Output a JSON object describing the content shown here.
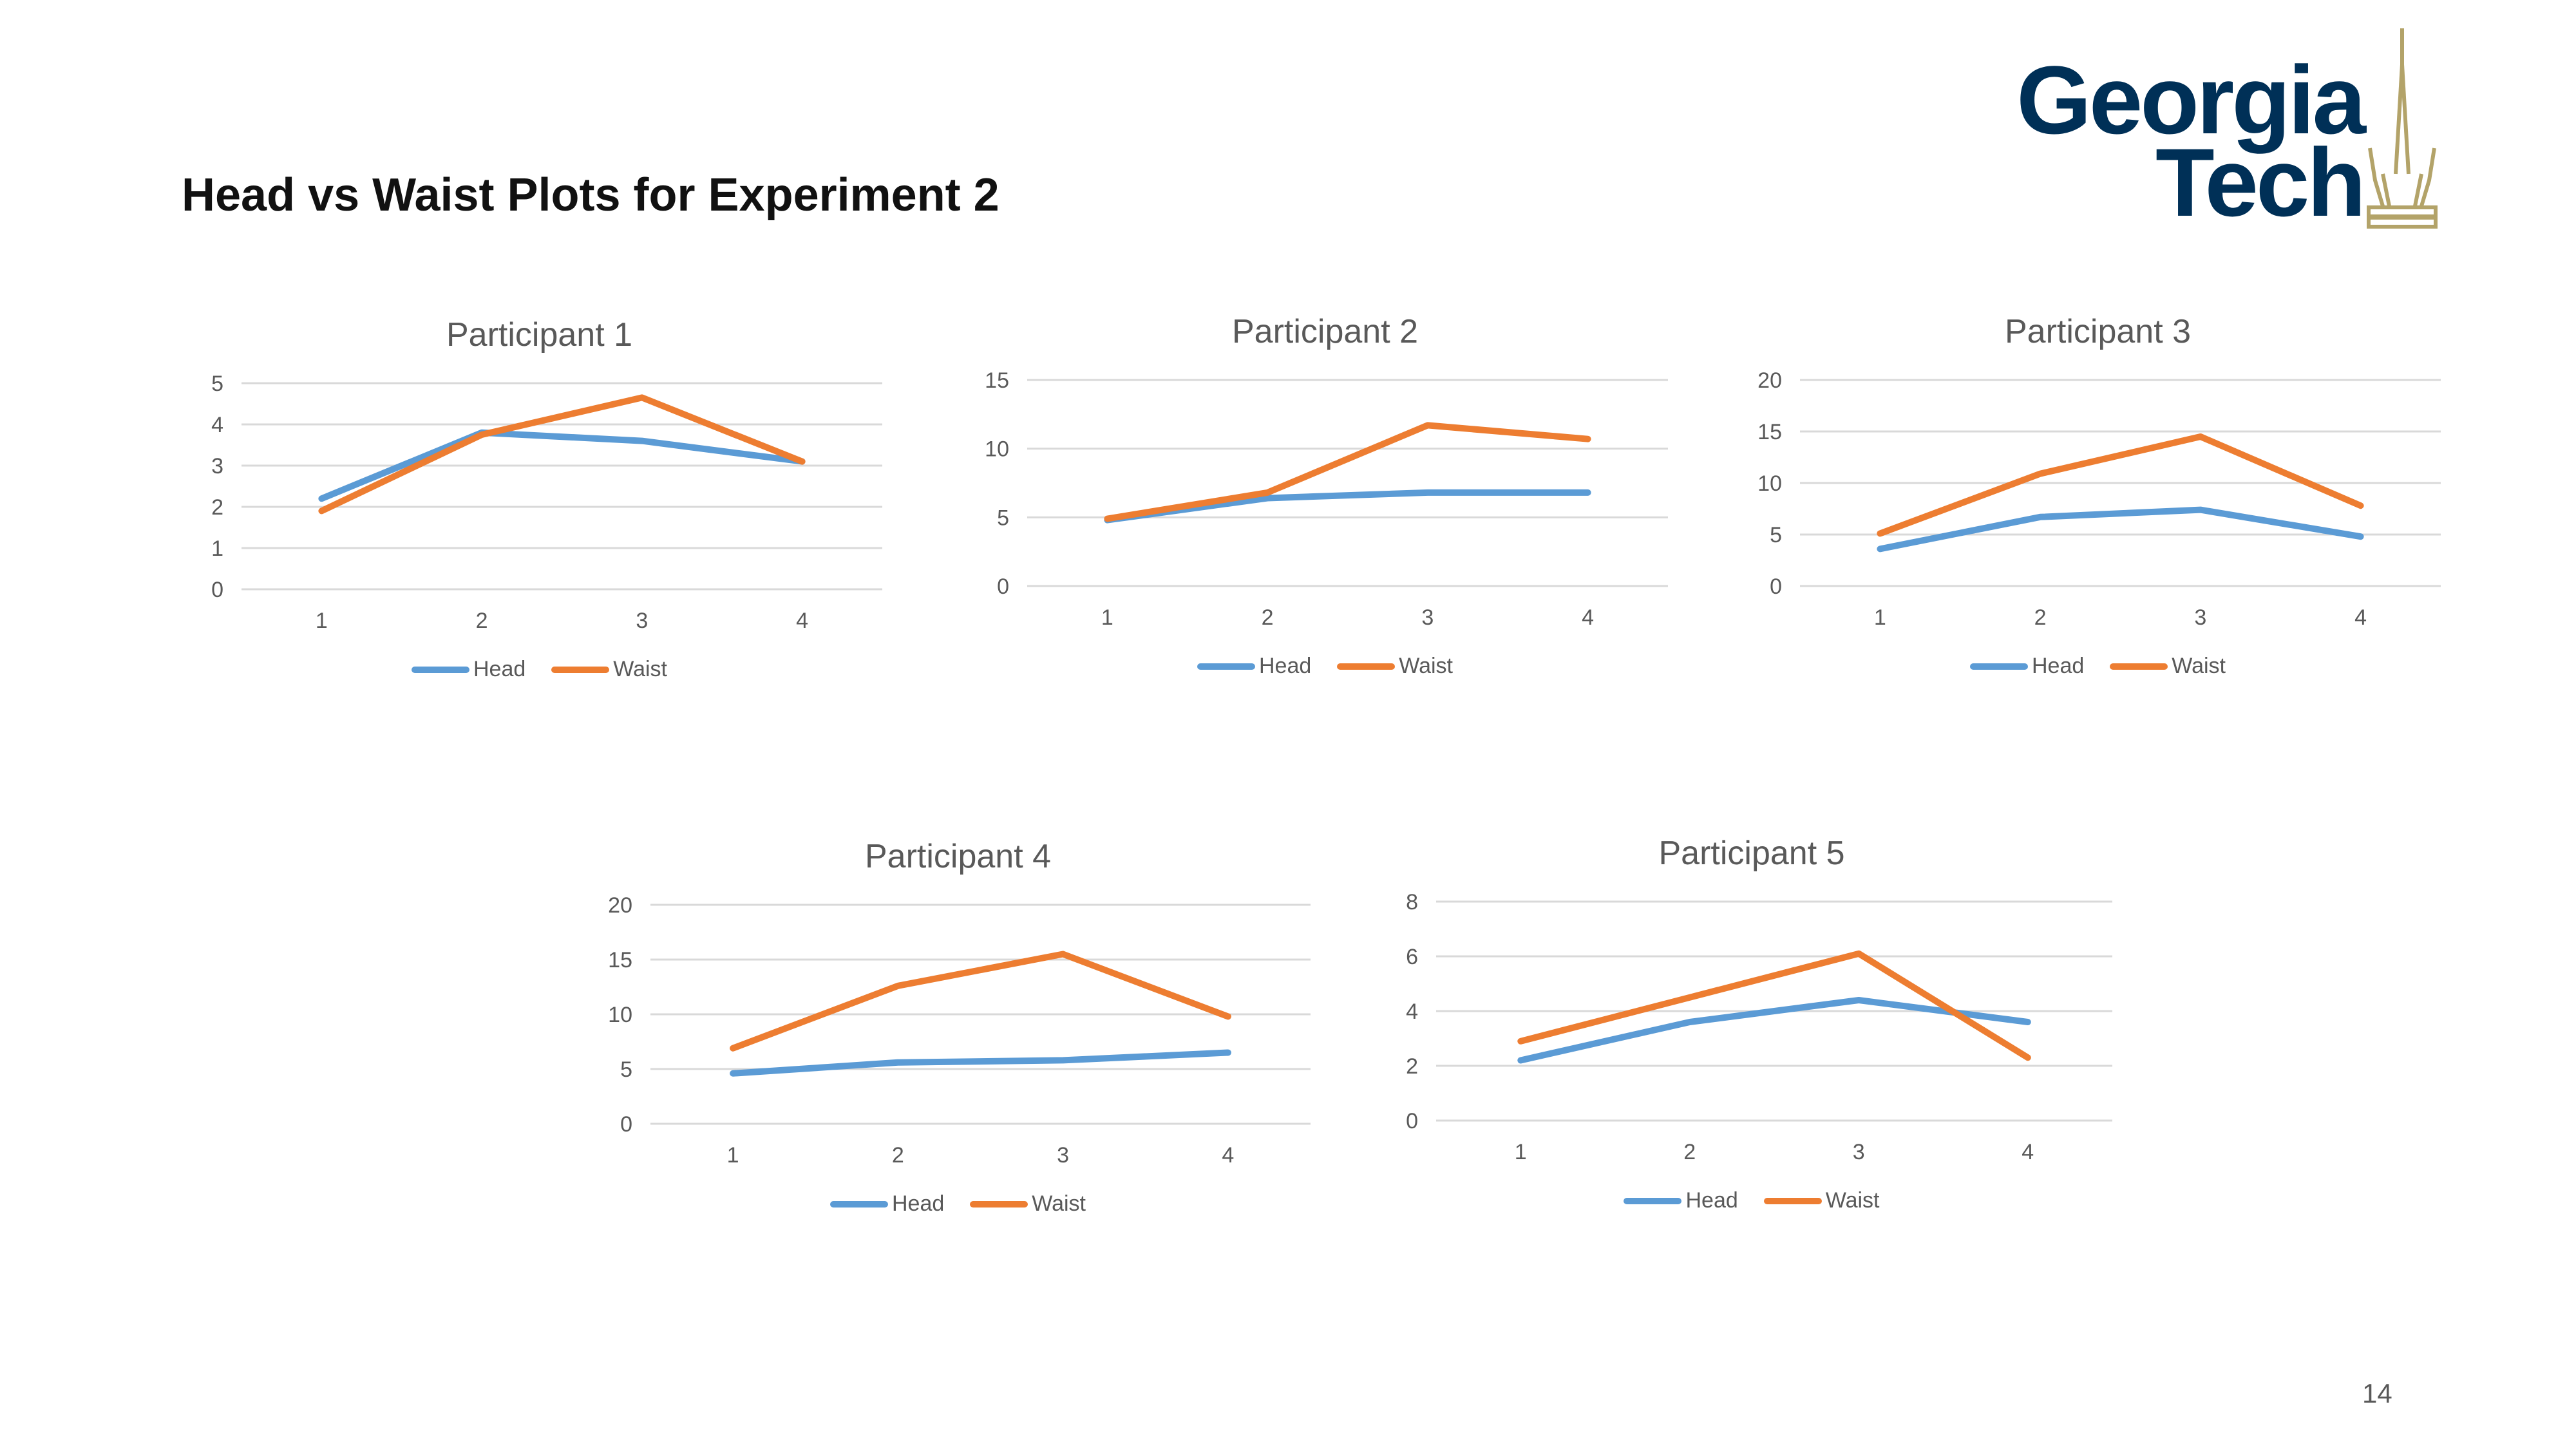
{
  "slide": {
    "title": "Head vs Waist Plots for Experiment 2",
    "page_number": "14"
  },
  "logo": {
    "line1": "Georgia",
    "line2": "Tech"
  },
  "colors": {
    "head": "#5B9BD5",
    "waist": "#ED7D31",
    "grid": "#D9D9D9",
    "axis_text": "#595959",
    "logo_navy": "#003057",
    "logo_gold": "#B3A369"
  },
  "chart_data": [
    {
      "type": "line",
      "title": "Participant 1",
      "categories": [
        "1",
        "2",
        "3",
        "4"
      ],
      "series": [
        {
          "name": "Head",
          "values": [
            2.2,
            3.8,
            3.6,
            3.1
          ]
        },
        {
          "name": "Waist",
          "values": [
            1.9,
            3.75,
            4.65,
            3.1
          ]
        }
      ],
      "ylim": [
        0,
        5
      ],
      "yticks": [
        "0",
        "1",
        "2",
        "3",
        "4",
        "5"
      ],
      "grid": true,
      "legend": "bottom"
    },
    {
      "type": "line",
      "title": "Participant 2",
      "categories": [
        "1",
        "2",
        "3",
        "4"
      ],
      "series": [
        {
          "name": "Head",
          "values": [
            4.8,
            6.4,
            6.8,
            6.8
          ]
        },
        {
          "name": "Waist",
          "values": [
            4.9,
            6.8,
            11.7,
            10.7
          ]
        }
      ],
      "ylim": [
        0,
        15
      ],
      "yticks": [
        "0",
        "5",
        "10",
        "15"
      ],
      "grid": true,
      "legend": "bottom"
    },
    {
      "type": "line",
      "title": "Participant 3",
      "categories": [
        "1",
        "2",
        "3",
        "4"
      ],
      "series": [
        {
          "name": "Head",
          "values": [
            3.6,
            6.7,
            7.4,
            4.8
          ]
        },
        {
          "name": "Waist",
          "values": [
            5.1,
            10.9,
            14.5,
            7.8
          ]
        }
      ],
      "ylim": [
        0,
        20
      ],
      "yticks": [
        "0",
        "5",
        "10",
        "15",
        "20"
      ],
      "grid": true,
      "legend": "bottom"
    },
    {
      "type": "line",
      "title": "Participant 4",
      "categories": [
        "1",
        "2",
        "3",
        "4"
      ],
      "series": [
        {
          "name": "Head",
          "values": [
            4.6,
            5.6,
            5.8,
            6.5
          ]
        },
        {
          "name": "Waist",
          "values": [
            6.9,
            12.6,
            15.5,
            9.8
          ]
        }
      ],
      "ylim": [
        0,
        20
      ],
      "yticks": [
        "0",
        "5",
        "10",
        "15",
        "20"
      ],
      "grid": true,
      "legend": "bottom"
    },
    {
      "type": "line",
      "title": "Participant 5",
      "categories": [
        "1",
        "2",
        "3",
        "4"
      ],
      "series": [
        {
          "name": "Head",
          "values": [
            2.2,
            3.6,
            4.4,
            3.6
          ]
        },
        {
          "name": "Waist",
          "values": [
            2.9,
            4.5,
            6.1,
            2.3
          ]
        }
      ],
      "ylim": [
        0,
        8
      ],
      "yticks": [
        "0",
        "2",
        "4",
        "6",
        "8"
      ],
      "grid": true,
      "legend": "bottom"
    }
  ]
}
